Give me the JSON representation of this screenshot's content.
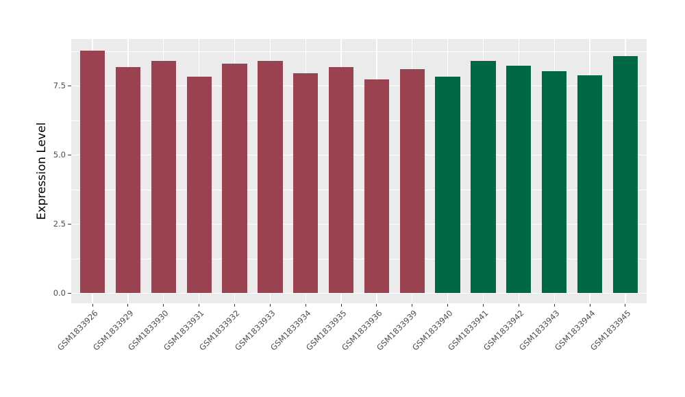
{
  "chart_data": {
    "type": "bar",
    "title": "",
    "xlabel": "",
    "ylabel": "Expression Level",
    "categories": [
      "GSM1833926",
      "GSM1833929",
      "GSM1833930",
      "GSM1833931",
      "GSM1833932",
      "GSM1833933",
      "GSM1833934",
      "GSM1833935",
      "GSM1833936",
      "GSM1833939",
      "GSM1833940",
      "GSM1833941",
      "GSM1833942",
      "GSM1833943",
      "GSM1833944",
      "GSM1833945"
    ],
    "values": [
      8.78,
      8.18,
      8.4,
      7.84,
      8.3,
      8.4,
      7.96,
      8.18,
      7.72,
      8.09,
      7.84,
      8.4,
      8.23,
      8.03,
      7.88,
      8.58
    ],
    "bar_colors": [
      "#9B4250",
      "#9B4250",
      "#9B4250",
      "#9B4250",
      "#9B4250",
      "#9B4250",
      "#9B4250",
      "#9B4250",
      "#9B4250",
      "#9B4250",
      "#006847",
      "#006847",
      "#006847",
      "#006847",
      "#006847",
      "#006847"
    ],
    "y_tick_labels": [
      "0.0",
      "2.5",
      "5.0",
      "7.5"
    ],
    "y_tick_values": [
      0,
      2.5,
      5.0,
      7.5
    ],
    "y_minor_values": [
      1.25,
      3.75,
      6.25,
      8.75
    ],
    "ylim": [
      0,
      9.19
    ],
    "x_expand": 0.6,
    "bar_width_fraction": 0.7,
    "grid": "horizontal major+minor, vertical major at category centers",
    "legend_position": "none",
    "colors": {
      "page_background": "#FFFFFF",
      "panel_background": "#EBEBEB",
      "gridline": "#FFFFFF",
      "tick_label": "#4D4D4D",
      "tick_mark": "#333333",
      "axis_title": "#000000"
    }
  }
}
